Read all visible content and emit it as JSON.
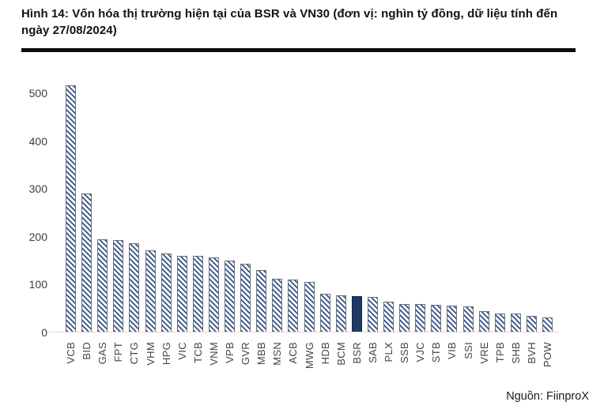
{
  "figure": {
    "title": "Hình 14: Vốn hóa thị trường hiện tại của BSR và VN30 (đơn vị: nghìn tỷ đồng, dữ liệu tính đến ngày 27/08/2024)",
    "source": "Nguồn: FiinproX"
  },
  "chart_data": {
    "type": "bar",
    "title": "Vốn hóa thị trường hiện tại của BSR và VN30",
    "unit": "nghìn tỷ đồng",
    "categories": [
      "VCB",
      "BID",
      "GAS",
      "FPT",
      "CTG",
      "VHM",
      "HPG",
      "VIC",
      "TCB",
      "VNM",
      "VPB",
      "GVR",
      "MBB",
      "MSN",
      "ACB",
      "MWG",
      "HDB",
      "BCM",
      "BSR",
      "SAB",
      "PLX",
      "SSB",
      "VJC",
      "STB",
      "VIB",
      "SSI",
      "VRE",
      "TPB",
      "SHB",
      "BVH",
      "POW"
    ],
    "values": [
      517,
      291,
      195,
      194,
      186,
      172,
      165,
      161,
      160,
      157,
      151,
      143,
      131,
      113,
      111,
      105,
      81,
      77,
      76,
      75,
      64,
      59,
      59,
      58,
      57,
      55,
      45,
      40,
      39,
      34,
      31
    ],
    "highlight_category": "BSR",
    "xlabel": "",
    "ylabel": "",
    "ylim": [
      0,
      500
    ],
    "yticks": [
      0,
      100,
      200,
      300,
      400,
      500
    ],
    "grid": false,
    "legend": null,
    "bar_style": {
      "pattern": "diagonal-hatch",
      "hatch_stripe": "#33508C",
      "hatch_bg": "#FFFFFF",
      "bar_outline": "#6E6E6E",
      "highlight_fill": "#1F3864",
      "highlight_outline": "#16294A",
      "axis_line": "#D9D9D9"
    }
  }
}
